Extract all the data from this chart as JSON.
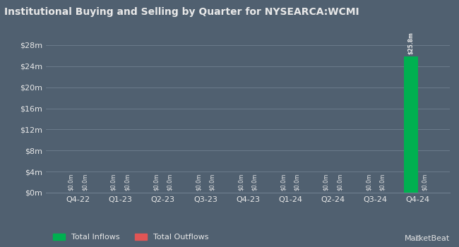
{
  "title": "Institutional Buying and Selling by Quarter for NYSEARCA:WCMI",
  "categories": [
    "Q4-22",
    "Q1-23",
    "Q2-23",
    "Q3-23",
    "Q4-23",
    "Q1-24",
    "Q2-24",
    "Q3-24",
    "Q4-24"
  ],
  "inflows": [
    0.0,
    0.0,
    0.0,
    0.0,
    0.0,
    0.0,
    0.0,
    0.0,
    25.8
  ],
  "outflows": [
    0.0,
    0.0,
    0.0,
    0.0,
    0.0,
    0.0,
    0.0,
    0.0,
    0.0
  ],
  "inflow_color": "#00b050",
  "outflow_color": "#e05555",
  "bg_color": "#506070",
  "text_color": "#e8e8e8",
  "grid_color": "#708090",
  "yticks": [
    0,
    4,
    8,
    12,
    16,
    20,
    24,
    28
  ],
  "ylabels": [
    "$0m",
    "$4m",
    "$8m",
    "$12m",
    "$16m",
    "$20m",
    "$24m",
    "$28m"
  ],
  "ylim": [
    0,
    30
  ],
  "bar_annotation_small": "$0.0m",
  "bar_annotation_large": "$25.8m",
  "legend_inflows": "Total Inflows",
  "legend_outflows": "Total Outflows"
}
